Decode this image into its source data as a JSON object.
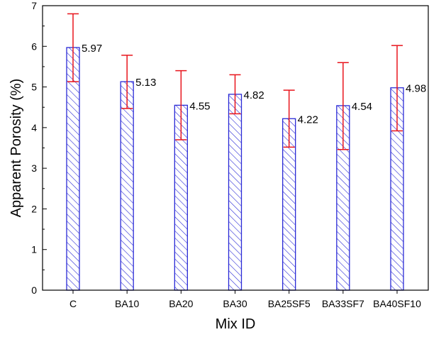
{
  "chart_data": {
    "type": "bar",
    "title": "",
    "xlabel": "Mix ID",
    "ylabel": "Apparent Porosity (%)",
    "ylim": [
      0,
      7
    ],
    "yticks": [
      0,
      1,
      2,
      3,
      4,
      5,
      6,
      7
    ],
    "categories": [
      "C",
      "BA10",
      "BA20",
      "BA30",
      "BA25SF5",
      "BA33SF7",
      "BA40SF10"
    ],
    "values": [
      5.97,
      5.13,
      4.55,
      4.82,
      4.22,
      4.54,
      4.98
    ],
    "value_labels": [
      "5.97",
      "5.13",
      "4.55",
      "4.82",
      "4.22",
      "4.54",
      "4.98"
    ],
    "error_upper": [
      6.8,
      5.78,
      5.4,
      5.3,
      4.92,
      5.6,
      6.02
    ],
    "error_lower": [
      5.13,
      4.47,
      3.7,
      4.34,
      3.52,
      3.46,
      3.92
    ],
    "grid": false,
    "legend": "none",
    "colors": {
      "bar_edge": "#2a2ad6",
      "bar_hatch": "#2a2ad6",
      "error_bar": "#e8141c",
      "axis": "#000000"
    }
  }
}
